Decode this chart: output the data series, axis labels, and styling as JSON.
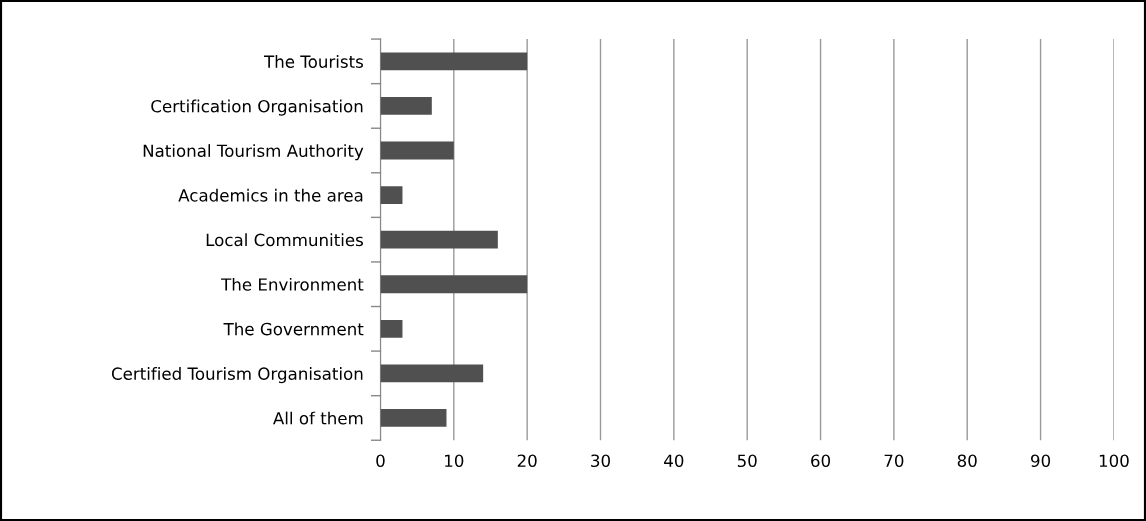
{
  "chart_data": {
    "type": "bar",
    "orientation": "horizontal",
    "categories": [
      "The Tourists",
      "Certification Organisation",
      "National Tourism Authority",
      "Academics in the area",
      "Local Communities",
      "The Environment",
      "The Government",
      "Certified Tourism Organisation",
      "All of them"
    ],
    "values": [
      20,
      7,
      10,
      3,
      16,
      20,
      3,
      14,
      9
    ],
    "color": "#505050",
    "xlim": [
      0,
      100
    ],
    "xticks": [
      0,
      10,
      20,
      30,
      40,
      50,
      60,
      70,
      80,
      90,
      100
    ],
    "grid": "x",
    "legend": false
  }
}
